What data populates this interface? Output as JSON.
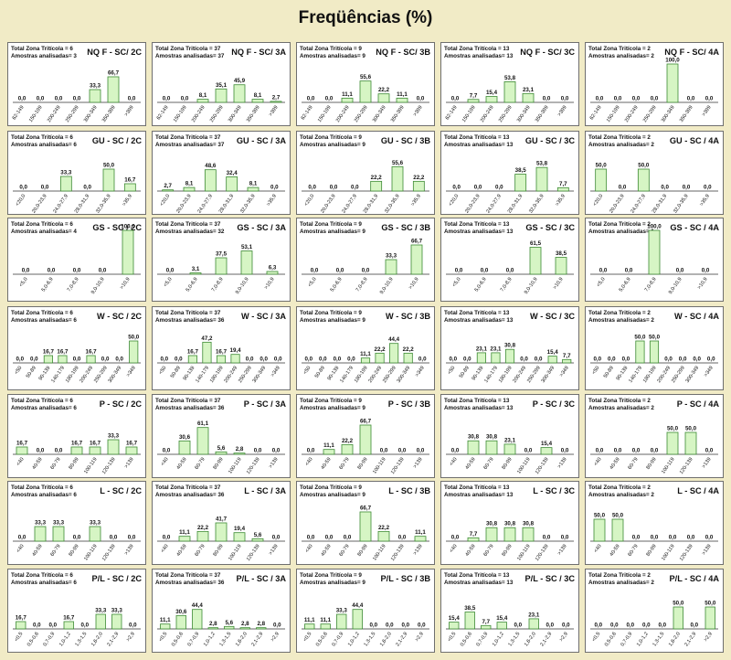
{
  "page": {
    "title": "Freqüências (%)"
  },
  "chart_data": [
    {
      "type": "bar",
      "title": "NQ F - SC/ 2C",
      "total": "Total Zona Tritícola = 6",
      "samples": "Amostras analisadas= 3",
      "categories": [
        "62-149",
        "150-199",
        "200-249",
        "250-299",
        "300-349",
        "350-399",
        ">399"
      ],
      "values": [
        "0,0",
        "0,0",
        "0,0",
        "0,0",
        "33,3",
        "66,7",
        "0,0"
      ],
      "ylim": [
        0,
        100
      ]
    },
    {
      "type": "bar",
      "title": "NQ F - SC/ 3A",
      "total": "Total Zona Tritícola = 37",
      "samples": "Amostras analisadas= 37",
      "categories": [
        "62-149",
        "150-199",
        "200-249",
        "250-299",
        "300-349",
        "350-399",
        ">399"
      ],
      "values": [
        "0,0",
        "0,0",
        "8,1",
        "35,1",
        "45,9",
        "8,1",
        "2,7"
      ],
      "ylim": [
        0,
        100
      ]
    },
    {
      "type": "bar",
      "title": "NQ F - SC/ 3B",
      "total": "Total Zona Tritícola = 9",
      "samples": "Amostras analisadas= 9",
      "categories": [
        "62-149",
        "150-199",
        "200-249",
        "250-299",
        "300-349",
        "350-399",
        ">399"
      ],
      "values": [
        "0,0",
        "0,0",
        "11,1",
        "55,6",
        "22,2",
        "11,1",
        "0,0"
      ],
      "ylim": [
        0,
        100
      ]
    },
    {
      "type": "bar",
      "title": "NQ F - SC/ 3C",
      "total": "Total Zona Tritícola = 13",
      "samples": "Amostras analisadas= 13",
      "categories": [
        "62-149",
        "150-199",
        "200-249",
        "250-299",
        "300-349",
        "350-399",
        ">399"
      ],
      "values": [
        "0,0",
        "7,7",
        "15,4",
        "53,8",
        "23,1",
        "0,0",
        "0,0"
      ],
      "ylim": [
        0,
        100
      ]
    },
    {
      "type": "bar",
      "title": "NQ F - SC/ 4A",
      "total": "Total Zona Tritícola = 2",
      "samples": "Amostras analisadas= 2",
      "categories": [
        "62-149",
        "150-199",
        "200-249",
        "250-299",
        "300-349",
        "350-399",
        ">399"
      ],
      "values": [
        "0,0",
        "0,0",
        "0,0",
        "0,0",
        "100,0",
        "0,0",
        "0,0"
      ],
      "ylim": [
        0,
        100
      ]
    },
    {
      "type": "bar",
      "title": "GU - SC / 2C",
      "total": "Total Zona Tritícola = 6",
      "samples": "Amostras analisadas= 6",
      "categories": [
        "<20,0",
        "20,0-23,9",
        "24,0-27,9",
        "28,0-31,9",
        "32,0-35,9",
        ">35,9"
      ],
      "values": [
        "0,0",
        "0,0",
        "33,3",
        "0,0",
        "50,0",
        "16,7"
      ],
      "ylim": [
        0,
        100
      ]
    },
    {
      "type": "bar",
      "title": "GU - SC / 3A",
      "total": "Total Zona Tritícola = 37",
      "samples": "Amostras analisadas= 37",
      "categories": [
        "<20,0",
        "20,0-23,9",
        "24,0-27,9",
        "28,0-31,9",
        "32,0-35,9",
        ">35,9"
      ],
      "values": [
        "2,7",
        "8,1",
        "48,6",
        "32,4",
        "8,1",
        "0,0"
      ],
      "ylim": [
        0,
        100
      ]
    },
    {
      "type": "bar",
      "title": "GU - SC / 3B",
      "total": "Total Zona Tritícola = 9",
      "samples": "Amostras analisadas= 9",
      "categories": [
        "<20,0",
        "20,0-23,9",
        "24,0-27,9",
        "28,0-31,9",
        "32,0-35,9",
        ">35,9"
      ],
      "values": [
        "0,0",
        "0,0",
        "0,0",
        "22,2",
        "55,6",
        "22,2"
      ],
      "ylim": [
        0,
        100
      ]
    },
    {
      "type": "bar",
      "title": "GU - SC / 3C",
      "total": "Total Zona Tritícola = 13",
      "samples": "Amostras analisadas= 13",
      "categories": [
        "<20,0",
        "20,0-23,9",
        "24,0-27,9",
        "28,0-31,9",
        "32,0-35,9",
        ">35,9"
      ],
      "values": [
        "0,0",
        "0,0",
        "0,0",
        "38,5",
        "53,8",
        "7,7"
      ],
      "ylim": [
        0,
        100
      ]
    },
    {
      "type": "bar",
      "title": "GU - SC / 4A",
      "total": "Total Zona Tritícola = 2",
      "samples": "Amostras analisadas= 2",
      "categories": [
        "<20,0",
        "20,0-23,9",
        "24,0-27,9",
        "28,0-31,9",
        "32,0-35,9",
        ">35,9"
      ],
      "values": [
        "50,0",
        "0,0",
        "50,0",
        "0,0",
        "0,0",
        "0,0"
      ],
      "ylim": [
        0,
        100
      ]
    },
    {
      "type": "bar",
      "title": "GS - SC / 2C",
      "total": "Total Zona Tritícola = 6",
      "samples": "Amostras analisadas= 4",
      "categories": [
        "<5,0",
        "5,0-6,9",
        "7,0-8,9",
        "9,0-10,9",
        ">10,9"
      ],
      "values": [
        "0,0",
        "0,0",
        "0,0",
        "0,0",
        "100,0"
      ],
      "ylim": [
        0,
        100
      ]
    },
    {
      "type": "bar",
      "title": "GS - SC / 3A",
      "total": "Total Zona Tritícola = 37",
      "samples": "Amostras analisadas= 32",
      "categories": [
        "<5,0",
        "5,0-6,9",
        "7,0-8,9",
        "9,0-10,9",
        ">10,9"
      ],
      "values": [
        "0,0",
        "3,1",
        "37,5",
        "53,1",
        "6,3"
      ],
      "ylim": [
        0,
        100
      ]
    },
    {
      "type": "bar",
      "title": "GS - SC / 3B",
      "total": "Total Zona Tritícola = 9",
      "samples": "Amostras analisadas= 9",
      "categories": [
        "<5,0",
        "5,0-6,9",
        "7,0-8,9",
        "9,0-10,9",
        ">10,9"
      ],
      "values": [
        "0,0",
        "0,0",
        "0,0",
        "33,3",
        "66,7"
      ],
      "ylim": [
        0,
        100
      ]
    },
    {
      "type": "bar",
      "title": "GS - SC / 3C",
      "total": "Total Zona Tritícola = 13",
      "samples": "Amostras analisadas= 13",
      "categories": [
        "<5,0",
        "5,0-6,9",
        "7,0-8,9",
        "9,0-10,9",
        ">10,9"
      ],
      "values": [
        "0,0",
        "0,0",
        "0,0",
        "61,5",
        "38,5"
      ],
      "ylim": [
        0,
        100
      ]
    },
    {
      "type": "bar",
      "title": "GS - SC / 4A",
      "total": "Total Zona Tritícola = 2",
      "samples": "Amostras analisadas= 1",
      "categories": [
        "<5,0",
        "5,0-6,9",
        "7,0-8,9",
        "9,0-10,9",
        ">10,9"
      ],
      "values": [
        "0,0",
        "0,0",
        "100,0",
        "0,0",
        "0,0"
      ],
      "ylim": [
        0,
        100
      ]
    },
    {
      "type": "bar",
      "title": "W - SC / 2C",
      "total": "Total Zona Tritícola = 6",
      "samples": "Amostras analisadas= 6",
      "categories": [
        "<50",
        "50-89",
        "90-139",
        "140-179",
        "180-199",
        "200-249",
        "250-299",
        "300-349",
        ">349"
      ],
      "values": [
        "0,0",
        "0,0",
        "16,7",
        "16,7",
        "0,0",
        "16,7",
        "0,0",
        "0,0",
        "50,0"
      ],
      "ylim": [
        0,
        100
      ]
    },
    {
      "type": "bar",
      "title": "W - SC / 3A",
      "total": "Total Zona Tritícola = 37",
      "samples": "Amostras analisadas= 36",
      "categories": [
        "<50",
        "50-89",
        "90-139",
        "140-179",
        "180-199",
        "200-249",
        "250-299",
        "300-349",
        ">349"
      ],
      "values": [
        "0,0",
        "0,0",
        "16,7",
        "47,2",
        "16,7",
        "19,4",
        "0,0",
        "0,0",
        "0,0"
      ],
      "ylim": [
        0,
        100
      ]
    },
    {
      "type": "bar",
      "title": "W - SC / 3B",
      "total": "Total Zona Tritícola = 9",
      "samples": "Amostras analisadas= 9",
      "categories": [
        "<50",
        "50-89",
        "90-139",
        "140-179",
        "180-199",
        "200-249",
        "250-299",
        "300-349",
        ">349"
      ],
      "values": [
        "0,0",
        "0,0",
        "0,0",
        "0,0",
        "11,1",
        "22,2",
        "44,4",
        "22,2",
        "0,0"
      ],
      "ylim": [
        0,
        100
      ]
    },
    {
      "type": "bar",
      "title": "W - SC / 3C",
      "total": "Total Zona Tritícola = 13",
      "samples": "Amostras analisadas= 13",
      "categories": [
        "<50",
        "50-89",
        "90-139",
        "140-179",
        "180-199",
        "200-249",
        "250-299",
        "300-349",
        ">349"
      ],
      "values": [
        "0,0",
        "0,0",
        "23,1",
        "23,1",
        "30,8",
        "0,0",
        "0,0",
        "15,4",
        "7,7"
      ],
      "ylim": [
        0,
        100
      ]
    },
    {
      "type": "bar",
      "title": "W - SC / 4A",
      "total": "Total Zona Tritícola = 2",
      "samples": "Amostras analisadas= 2",
      "categories": [
        "<50",
        "50-89",
        "90-139",
        "140-179",
        "180-199",
        "200-249",
        "250-299",
        "300-349",
        ">349"
      ],
      "values": [
        "0,0",
        "0,0",
        "0,0",
        "50,0",
        "50,0",
        "0,0",
        "0,0",
        "0,0",
        "0,0"
      ],
      "ylim": [
        0,
        100
      ]
    },
    {
      "type": "bar",
      "title": "P - SC / 2C",
      "total": "Total Zona Tritícola = 6",
      "samples": "Amostras analisadas= 6",
      "categories": [
        "<40",
        "40-59",
        "60-79",
        "80-99",
        "100-119",
        "120-139",
        ">139"
      ],
      "values": [
        "16,7",
        "0,0",
        "0,0",
        "16,7",
        "16,7",
        "33,3",
        "16,7"
      ],
      "ylim": [
        0,
        100
      ]
    },
    {
      "type": "bar",
      "title": "P - SC / 3A",
      "total": "Total Zona Tritícola = 37",
      "samples": "Amostras analisadas= 36",
      "categories": [
        "<40",
        "40-59",
        "60-79",
        "80-99",
        "100-119",
        "120-139",
        ">139"
      ],
      "values": [
        "0,0",
        "30,6",
        "61,1",
        "5,6",
        "2,8",
        "0,0",
        "0,0"
      ],
      "ylim": [
        0,
        100
      ]
    },
    {
      "type": "bar",
      "title": "P - SC / 3B",
      "total": "Total Zona Tritícola = 9",
      "samples": "Amostras analisadas= 9",
      "categories": [
        "<40",
        "40-59",
        "60-79",
        "80-99",
        "100-119",
        "120-139",
        ">139"
      ],
      "values": [
        "0,0",
        "11,1",
        "22,2",
        "66,7",
        "0,0",
        "0,0",
        "0,0"
      ],
      "ylim": [
        0,
        100
      ]
    },
    {
      "type": "bar",
      "title": "P - SC / 3C",
      "total": "Total Zona Tritícola = 13",
      "samples": "Amostras analisadas= 13",
      "categories": [
        "<40",
        "40-59",
        "60-79",
        "80-99",
        "100-119",
        "120-139",
        ">139"
      ],
      "values": [
        "0,0",
        "30,8",
        "30,8",
        "23,1",
        "0,0",
        "15,4",
        "0,0"
      ],
      "ylim": [
        0,
        100
      ]
    },
    {
      "type": "bar",
      "title": "P - SC / 4A",
      "total": "Total Zona Tritícola = 2",
      "samples": "Amostras analisadas= 2",
      "categories": [
        "<40",
        "40-59",
        "60-79",
        "80-99",
        "100-119",
        "120-139",
        ">139"
      ],
      "values": [
        "0,0",
        "0,0",
        "0,0",
        "0,0",
        "50,0",
        "50,0",
        "0,0"
      ],
      "ylim": [
        0,
        100
      ]
    },
    {
      "type": "bar",
      "title": "L - SC / 2C",
      "total": "Total Zona Tritícola = 6",
      "samples": "Amostras analisadas= 6",
      "categories": [
        "<40",
        "40-59",
        "60-79",
        "80-99",
        "100-119",
        "120-139",
        ">139"
      ],
      "values": [
        "0,0",
        "33,3",
        "33,3",
        "0,0",
        "33,3",
        "0,0",
        "0,0"
      ],
      "ylim": [
        0,
        100
      ]
    },
    {
      "type": "bar",
      "title": "L - SC / 3A",
      "total": "Total Zona Tritícola = 37",
      "samples": "Amostras analisadas= 36",
      "categories": [
        "<40",
        "40-59",
        "60-79",
        "80-99",
        "100-119",
        "120-139",
        ">139"
      ],
      "values": [
        "0,0",
        "11,1",
        "22,2",
        "41,7",
        "19,4",
        "5,6",
        "0,0"
      ],
      "ylim": [
        0,
        100
      ]
    },
    {
      "type": "bar",
      "title": "L - SC / 3B",
      "total": "Total Zona Tritícola = 9",
      "samples": "Amostras analisadas= 9",
      "categories": [
        "<40",
        "40-59",
        "60-79",
        "80-99",
        "100-119",
        "120-139",
        ">139"
      ],
      "values": [
        "0,0",
        "0,0",
        "0,0",
        "66,7",
        "22,2",
        "0,0",
        "11,1"
      ],
      "ylim": [
        0,
        100
      ]
    },
    {
      "type": "bar",
      "title": "L - SC / 3C",
      "total": "Total Zona Tritícola = 13",
      "samples": "Amostras analisadas= 13",
      "categories": [
        "<40",
        "40-59",
        "60-79",
        "80-99",
        "100-119",
        "120-139",
        ">139"
      ],
      "values": [
        "0,0",
        "7,7",
        "30,8",
        "30,8",
        "30,8",
        "0,0",
        "0,0"
      ],
      "ylim": [
        0,
        100
      ]
    },
    {
      "type": "bar",
      "title": "L - SC / 4A",
      "total": "Total Zona Tritícola = 2",
      "samples": "Amostras analisadas= 2",
      "categories": [
        "<40",
        "40-59",
        "60-79",
        "80-99",
        "100-119",
        "120-139",
        ">139"
      ],
      "values": [
        "50,0",
        "50,0",
        "0,0",
        "0,0",
        "0,0",
        "0,0",
        "0,0"
      ],
      "ylim": [
        0,
        100
      ]
    },
    {
      "type": "bar",
      "title": "P/L - SC / 2C",
      "total": "Total Zona Tritícola = 6",
      "samples": "Amostras analisadas= 6",
      "categories": [
        "<0,5",
        "0,5-0,6",
        "0,7-0,9",
        "1,0-1,2",
        "1,3-1,5",
        "1,6-2,0",
        "2,1-2,9",
        ">2,9"
      ],
      "values": [
        "16,7",
        "0,0",
        "0,0",
        "16,7",
        "0,0",
        "33,3",
        "33,3",
        "0,0"
      ],
      "ylim": [
        0,
        100
      ]
    },
    {
      "type": "bar",
      "title": "P/L - SC / 3A",
      "total": "Total Zona Tritícola = 37",
      "samples": "Amostras analisadas= 36",
      "categories": [
        "<0,5",
        "0,5-0,6",
        "0,7-0,9",
        "1,0-1,2",
        "1,3-1,5",
        "1,6-2,0",
        "2,1-2,9",
        ">2,9"
      ],
      "values": [
        "11,1",
        "30,6",
        "44,4",
        "2,8",
        "5,6",
        "2,8",
        "2,8",
        "0,0"
      ],
      "ylim": [
        0,
        100
      ]
    },
    {
      "type": "bar",
      "title": "P/L - SC / 3B",
      "total": "Total Zona Tritícola = 9",
      "samples": "Amostras analisadas= 9",
      "categories": [
        "<0,5",
        "0,5-0,6",
        "0,7-0,9",
        "1,0-1,2",
        "1,3-1,5",
        "1,6-2,0",
        "2,1-2,9",
        ">2,9"
      ],
      "values": [
        "11,1",
        "11,1",
        "33,3",
        "44,4",
        "0,0",
        "0,0",
        "0,0",
        "0,0"
      ],
      "ylim": [
        0,
        100
      ]
    },
    {
      "type": "bar",
      "title": "P/L - SC / 3C",
      "total": "Total Zona Tritícola = 13",
      "samples": "Amostras analisadas= 13",
      "categories": [
        "<0,5",
        "0,5-0,6",
        "0,7-0,9",
        "1,0-1,2",
        "1,3-1,5",
        "1,6-2,0",
        "2,1-2,9",
        ">2,9"
      ],
      "values": [
        "15,4",
        "38,5",
        "7,7",
        "15,4",
        "0,0",
        "23,1",
        "0,0",
        "0,0"
      ],
      "ylim": [
        0,
        100
      ]
    },
    {
      "type": "bar",
      "title": "P/L - SC / 4A",
      "total": "Total Zona Tritícola = 2",
      "samples": "Amostras analisadas= 2",
      "categories": [
        "<0,5",
        "0,5-0,6",
        "0,7-0,9",
        "1,0-1,2",
        "1,3-1,5",
        "1,6-2,0",
        "2,1-2,9",
        ">2,9"
      ],
      "values": [
        "0,0",
        "0,0",
        "0,0",
        "0,0",
        "0,0",
        "50,0",
        "0,0",
        "50,0"
      ],
      "ylim": [
        0,
        100
      ]
    }
  ]
}
